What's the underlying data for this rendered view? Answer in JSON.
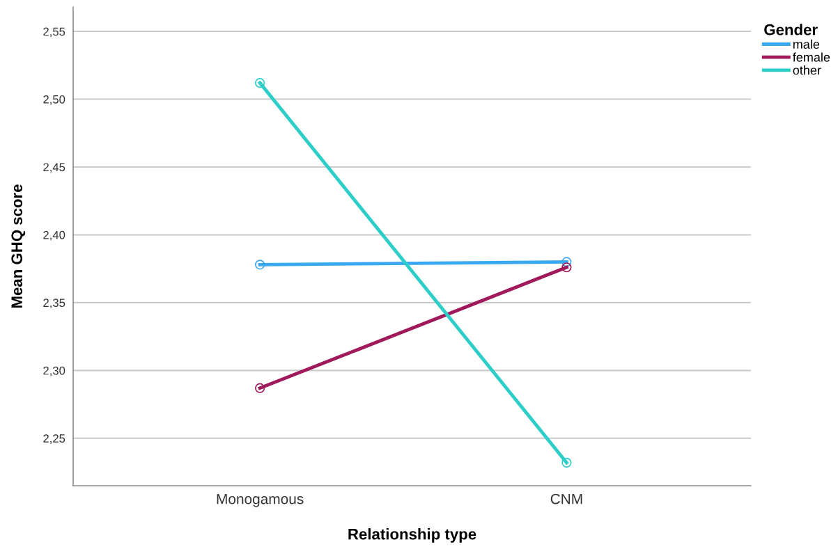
{
  "chart_data": {
    "type": "line",
    "xlabel": "Relationship type",
    "ylabel": "Mean GHQ score",
    "legend_title": "Gender",
    "categories": [
      "Monogamous",
      "CNM"
    ],
    "series": [
      {
        "name": "male",
        "color": "#3aa8f0",
        "values": [
          2.378,
          2.38
        ]
      },
      {
        "name": "female",
        "color": "#a0195a",
        "values": [
          2.287,
          2.376
        ]
      },
      {
        "name": "other",
        "color": "#2dcdc8",
        "values": [
          2.512,
          2.232
        ]
      }
    ],
    "ylim": [
      2.215,
      2.568
    ],
    "yticks": [
      {
        "value": 2.25,
        "label": "2,25"
      },
      {
        "value": 2.3,
        "label": "2,30"
      },
      {
        "value": 2.35,
        "label": "2,35"
      },
      {
        "value": 2.4,
        "label": "2,40"
      },
      {
        "value": 2.45,
        "label": "2,45"
      },
      {
        "value": 2.5,
        "label": "2,50"
      },
      {
        "value": 2.55,
        "label": "2,55"
      }
    ],
    "grid": "y",
    "legend": "top right",
    "marker": "circle",
    "line_style": "solid"
  }
}
